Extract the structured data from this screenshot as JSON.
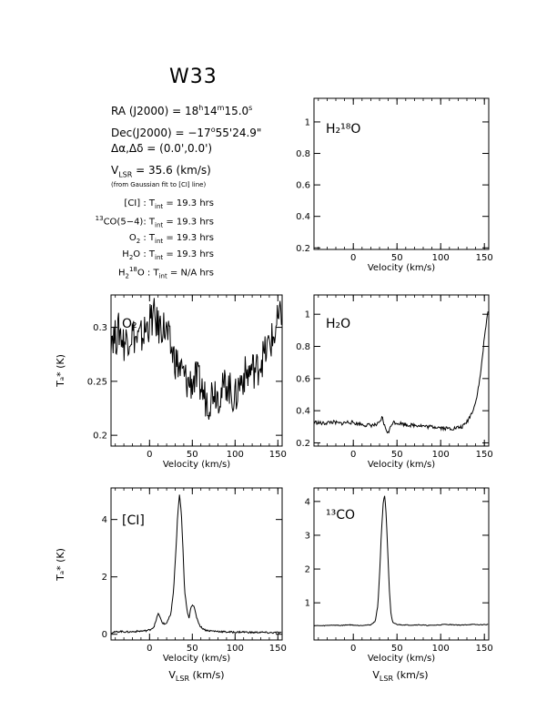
{
  "source_name": "W33",
  "header": {
    "ra_label": "RA (J2000) = ",
    "ra_h": "18",
    "ra_m": "14",
    "ra_s": "15.0",
    "dec_label": "Dec(J2000) = ",
    "dec_d": "−17",
    "dec_m": "55",
    "dec_s": "24.9",
    "offset_label": "Δα,Δδ = ",
    "offset_value": "(0.0',0.0')",
    "vlsr_label": "V",
    "vlsr_sub": "LSR",
    "vlsr_value": " = 35.6 (km/s)",
    "vlsr_note": "(from Gaussian fit to [CI] line)"
  },
  "integration_times": [
    {
      "line": "[CI]",
      "value": "19.3 hrs"
    },
    {
      "line": "13CO(5−4)",
      "value": "19.3 hrs"
    },
    {
      "line": "O2",
      "value": "19.3 hrs"
    },
    {
      "line": "H2O",
      "value": "19.3 hrs"
    },
    {
      "line": "H218O",
      "value": "N/A hrs"
    }
  ],
  "chart_data": [
    {
      "type": "line",
      "panel": "H2-18O",
      "label": "H₂¹⁸O",
      "xlabel": "Velocity (km/s)",
      "ylabel": "",
      "xlim": [
        -45,
        155
      ],
      "ylim": [
        0.19,
        1.15
      ],
      "xticks": [
        0,
        50,
        100,
        150
      ],
      "yticks": [
        0.2,
        0.4,
        0.6,
        0.8,
        1
      ],
      "ytick_labels": [
        "0.2",
        "0.4",
        "0.6",
        "0.8",
        "1"
      ],
      "x": [],
      "y": []
    },
    {
      "type": "line",
      "panel": "O2",
      "label": "O₂",
      "xlabel": "Velocity (km/s)",
      "ylabel": "Tₐ* (K)",
      "xlim": [
        -45,
        155
      ],
      "ylim": [
        0.19,
        0.33
      ],
      "xticks": [
        0,
        50,
        100,
        150
      ],
      "yticks": [
        0.2,
        0.25,
        0.3
      ],
      "ytick_labels": [
        "0.2",
        "0.25",
        "0.3"
      ],
      "x": [
        -45,
        -40,
        -35,
        -30,
        -25,
        -20,
        -15,
        -10,
        -5,
        0,
        5,
        10,
        15,
        20,
        25,
        30,
        35,
        40,
        45,
        50,
        55,
        60,
        65,
        70,
        75,
        80,
        85,
        90,
        95,
        100,
        105,
        110,
        115,
        120,
        125,
        130,
        135,
        140,
        145,
        150,
        155
      ],
      "y": [
        0.295,
        0.29,
        0.298,
        0.285,
        0.292,
        0.295,
        0.288,
        0.29,
        0.297,
        0.305,
        0.31,
        0.3,
        0.302,
        0.295,
        0.28,
        0.27,
        0.262,
        0.255,
        0.248,
        0.25,
        0.252,
        0.245,
        0.235,
        0.232,
        0.245,
        0.238,
        0.24,
        0.25,
        0.24,
        0.233,
        0.248,
        0.255,
        0.257,
        0.262,
        0.26,
        0.27,
        0.275,
        0.285,
        0.29,
        0.305,
        0.31
      ]
    },
    {
      "type": "line",
      "panel": "H2O",
      "label": "H₂O",
      "xlabel": "Velocity (km/s)",
      "ylabel": "",
      "xlim": [
        -45,
        155
      ],
      "ylim": [
        0.18,
        1.12
      ],
      "xticks": [
        0,
        50,
        100,
        150
      ],
      "yticks": [
        0.2,
        0.4,
        0.6,
        0.8,
        1
      ],
      "ytick_labels": [
        "0.2",
        "0.4",
        "0.6",
        "0.8",
        "1"
      ],
      "x": [
        -45,
        -35,
        -25,
        -15,
        -5,
        5,
        15,
        25,
        30,
        33,
        36,
        40,
        45,
        55,
        65,
        75,
        85,
        95,
        105,
        115,
        125,
        130,
        135,
        140,
        145,
        150,
        155
      ],
      "y": [
        0.33,
        0.32,
        0.33,
        0.32,
        0.33,
        0.32,
        0.31,
        0.31,
        0.32,
        0.36,
        0.3,
        0.26,
        0.33,
        0.32,
        0.31,
        0.31,
        0.3,
        0.3,
        0.29,
        0.29,
        0.3,
        0.33,
        0.38,
        0.45,
        0.6,
        0.85,
        1.06
      ]
    },
    {
      "type": "line",
      "panel": "CI",
      "label": "[CI]",
      "xlabel": "Velocity (km/s)",
      "ylabel": "Tₐ* (K)",
      "xlim": [
        -45,
        155
      ],
      "ylim": [
        -0.2,
        5.1
      ],
      "xticks": [
        0,
        50,
        100,
        150
      ],
      "yticks": [
        0,
        2,
        4
      ],
      "ytick_labels": [
        "0",
        "2",
        "4"
      ],
      "x": [
        -45,
        -35,
        -25,
        -15,
        -5,
        0,
        5,
        8,
        10,
        12,
        15,
        18,
        20,
        25,
        28,
        31,
        33,
        35,
        37,
        39,
        41,
        44,
        46,
        48,
        50,
        52,
        55,
        58,
        60,
        65,
        70,
        80,
        90,
        100,
        110,
        120,
        130,
        140,
        150,
        155
      ],
      "y": [
        0.05,
        0.1,
        0.08,
        0.1,
        0.12,
        0.15,
        0.25,
        0.5,
        0.75,
        0.6,
        0.4,
        0.35,
        0.4,
        0.7,
        1.5,
        3.0,
        4.2,
        4.85,
        4.3,
        3.0,
        1.5,
        0.8,
        0.55,
        0.9,
        1.05,
        0.95,
        0.6,
        0.35,
        0.25,
        0.15,
        0.12,
        0.1,
        0.08,
        0.07,
        0.08,
        0.06,
        0.07,
        0.05,
        0.06,
        0.05
      ]
    },
    {
      "type": "line",
      "panel": "13CO",
      "label": "¹³CO",
      "xlabel": "Velocity (km/s)",
      "ylabel": "",
      "xlim": [
        -45,
        155
      ],
      "ylim": [
        -0.1,
        4.4
      ],
      "xticks": [
        0,
        50,
        100,
        150
      ],
      "yticks": [
        1,
        2,
        3,
        4
      ],
      "ytick_labels": [
        "1",
        "2",
        "3",
        "4"
      ],
      "x": [
        -45,
        -35,
        -25,
        -15,
        -5,
        5,
        15,
        20,
        25,
        28,
        30,
        32,
        34,
        35.6,
        37,
        39,
        41,
        43,
        45,
        50,
        55,
        65,
        75,
        85,
        95,
        105,
        115,
        125,
        135,
        145,
        155
      ],
      "y": [
        0.33,
        0.32,
        0.34,
        0.33,
        0.35,
        0.33,
        0.34,
        0.35,
        0.45,
        0.9,
        1.8,
        3.0,
        3.9,
        4.2,
        3.9,
        2.8,
        1.5,
        0.7,
        0.42,
        0.36,
        0.35,
        0.34,
        0.35,
        0.33,
        0.34,
        0.36,
        0.35,
        0.34,
        0.36,
        0.35,
        0.36
      ]
    }
  ],
  "bottom_xlabel_main": "Velocity (km/s)",
  "bottom_xlabel_sub": "V",
  "bottom_xlabel_sub2": "LSR",
  "bottom_xlabel_unit": " (km/s)"
}
